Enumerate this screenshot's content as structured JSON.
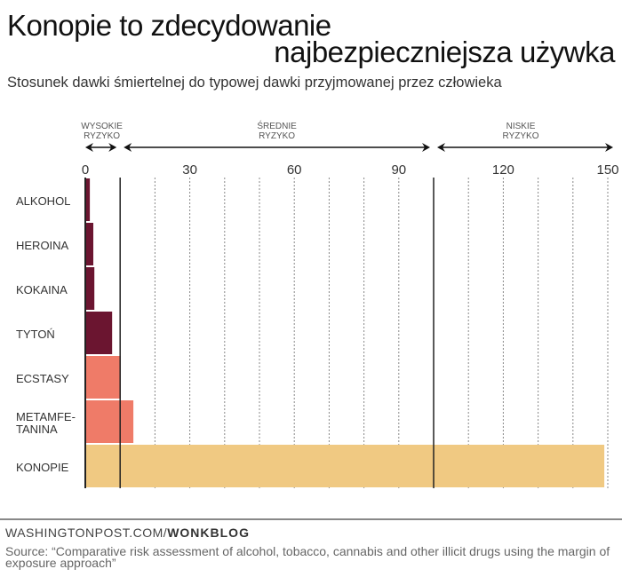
{
  "title_line1": "Konopie to zdecydowanie",
  "title_line2": "najbezpieczniejsza używka",
  "subtitle": "Stosunek dawki śmiertelnej do typowej dawki przyjmowanej przez człowieka",
  "chart_data": {
    "type": "bar",
    "orientation": "horizontal",
    "categories": [
      "ALKOHOL",
      "HEROINA",
      "KOKAINA",
      "TYTOŃ",
      "ECSTASY",
      "METAMFE-\nTANINA",
      "KONOPIE"
    ],
    "values": [
      1.3,
      2.3,
      2.6,
      7.7,
      10.2,
      13.8,
      149
    ],
    "colors": [
      "#6b1530",
      "#6b1530",
      "#6b1530",
      "#6b1530",
      "#ef7b68",
      "#ef7b68",
      "#f0c982"
    ],
    "xlim": [
      0,
      150
    ],
    "xticks": [
      0,
      30,
      60,
      90,
      120,
      150
    ],
    "minor_grid_step": 10,
    "thresholds": [
      10,
      100
    ],
    "zones": [
      {
        "label": "WYSOKIE\nRYZYKO",
        "from": 0,
        "to": 10
      },
      {
        "label": "ŚREDNIE\nRYZYKO",
        "from": 10,
        "to": 100
      },
      {
        "label": "NISKIE\nRYZYKO",
        "from": 100,
        "to": 150
      }
    ]
  },
  "footer": {
    "brand_prefix": "WASHINGTONPOST.COM/",
    "brand_bold": "WONKBLOG",
    "source": "Source: “Comparative risk assessment of alcohol, tobacco, cannabis and other illicit drugs using the margin of exposure approach”"
  }
}
